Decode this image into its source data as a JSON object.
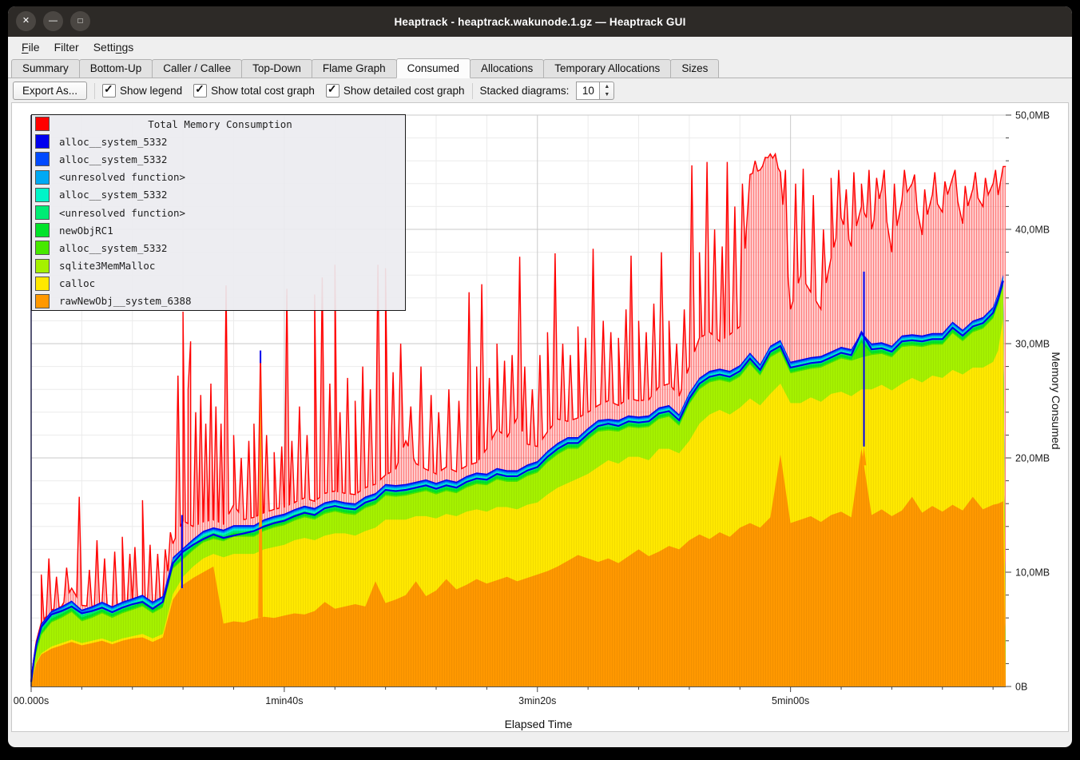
{
  "window": {
    "title": "Heaptrack - heaptrack.wakunode.1.gz — Heaptrack GUI",
    "controls": [
      {
        "name": "close",
        "glyph": "✕"
      },
      {
        "name": "minimize",
        "glyph": "—"
      },
      {
        "name": "maximize",
        "glyph": "□"
      }
    ]
  },
  "menubar": {
    "items": [
      {
        "label": "File",
        "underline_index": 0
      },
      {
        "label": "Filter",
        "underline_index": -1
      },
      {
        "label": "Settings",
        "underline_index": 5
      }
    ]
  },
  "tabs": {
    "active": "Consumed",
    "items": [
      "Summary",
      "Bottom-Up",
      "Caller / Callee",
      "Top-Down",
      "Flame Graph",
      "Consumed",
      "Allocations",
      "Temporary Allocations",
      "Sizes"
    ]
  },
  "toolbar": {
    "export_label": "Export As...",
    "checkboxes": [
      {
        "label": "Show legend",
        "checked": true
      },
      {
        "label": "Show total cost graph",
        "checked": true
      },
      {
        "label": "Show detailed cost graph",
        "checked": true
      }
    ],
    "stacked_label": "Stacked diagrams:",
    "stacked_value": "10",
    "check_glyph": "✓",
    "spin_up_glyph": "▲",
    "spin_down_glyph": "▼"
  },
  "legend": {
    "entries": [
      {
        "label": "Total Memory Consumption",
        "color": "#ff0000",
        "is_title": true
      },
      {
        "label": "alloc__system_5332",
        "color": "#0000ef",
        "is_title": false
      },
      {
        "label": "alloc__system_5332",
        "color": "#0049ff",
        "is_title": false
      },
      {
        "label": "<unresolved function>",
        "color": "#00a9f4",
        "is_title": false
      },
      {
        "label": "alloc__system_5332",
        "color": "#00f4c8",
        "is_title": false
      },
      {
        "label": "<unresolved function>",
        "color": "#00ec75",
        "is_title": false
      },
      {
        "label": "newObjRC1",
        "color": "#00e32b",
        "is_title": false
      },
      {
        "label": "alloc__system_5332",
        "color": "#47e900",
        "is_title": false
      },
      {
        "label": "sqlite3MemMalloc",
        "color": "#a5f100",
        "is_title": false
      },
      {
        "label": "calloc",
        "color": "#ffe800",
        "is_title": false
      },
      {
        "label": "rawNewObj__system_6388",
        "color": "#ff9800",
        "is_title": false
      }
    ]
  },
  "chart_data": {
    "type": "area",
    "stacked": true,
    "xlabel": "Elapsed Time",
    "ylabel": "Memory Consumed",
    "x_unit": "seconds",
    "xlim_s": [
      0,
      385
    ],
    "ylim_mb": [
      0,
      50
    ],
    "grid": {
      "h_minor_mb": 2,
      "h_major_mb": 10,
      "v_minor_s": 20,
      "v_major_s": 100,
      "minor_color": "#ebebeb",
      "major_color": "#c9c9c9"
    },
    "x_ticks": [
      {
        "label": "00.000s",
        "t": 0
      },
      {
        "label": "1min40s",
        "t": 100
      },
      {
        "label": "3min20s",
        "t": 200
      },
      {
        "label": "5min00s",
        "t": 300
      }
    ],
    "y_ticks": [
      {
        "label": "0B",
        "mb": 0
      },
      {
        "label": "10,0MB",
        "mb": 10
      },
      {
        "label": "20,0MB",
        "mb": 20
      },
      {
        "label": "30,0MB",
        "mb": 30
      },
      {
        "label": "40,0MB",
        "mb": 40
      },
      {
        "label": "50,0MB",
        "mb": 50
      }
    ],
    "t": [
      0,
      1,
      2,
      4,
      8,
      12,
      16,
      20,
      24,
      28,
      32,
      36,
      40,
      44,
      48,
      52,
      56,
      60,
      64,
      68,
      72,
      76,
      80,
      84,
      88,
      92,
      96,
      100,
      104,
      108,
      112,
      116,
      120,
      124,
      128,
      132,
      136,
      140,
      144,
      148,
      152,
      156,
      160,
      164,
      168,
      172,
      176,
      180,
      184,
      188,
      192,
      196,
      200,
      204,
      208,
      212,
      216,
      220,
      224,
      228,
      232,
      236,
      240,
      244,
      248,
      252,
      256,
      260,
      264,
      268,
      272,
      276,
      280,
      284,
      288,
      292,
      296,
      300,
      304,
      308,
      312,
      316,
      320,
      324,
      328,
      332,
      336,
      340,
      344,
      348,
      352,
      356,
      360,
      364,
      368,
      372,
      376,
      380,
      382,
      384
    ],
    "series_bottom_to_top": [
      {
        "name": "rawNewObj__system_6388",
        "color": "#ff9800",
        "values_mb": [
          0,
          1.2,
          2.0,
          2.8,
          3.3,
          3.6,
          3.9,
          3.6,
          3.8,
          4.0,
          3.7,
          4.0,
          4.2,
          4.3,
          3.9,
          4.3,
          7.6,
          8.9,
          9.5,
          10.0,
          10.5,
          5.5,
          5.7,
          5.6,
          5.9,
          6.1,
          6.0,
          6.2,
          6.4,
          6.3,
          6.6,
          7.4,
          6.8,
          7.0,
          7.2,
          7.0,
          9.2,
          7.3,
          7.6,
          8.0,
          9.2,
          7.9,
          8.4,
          9.4,
          8.5,
          8.9,
          9.4,
          9.0,
          9.3,
          9.6,
          9.2,
          9.5,
          9.8,
          10.1,
          10.5,
          11.0,
          11.5,
          11.2,
          10.9,
          11.2,
          10.8,
          11.4,
          12.0,
          11.4,
          11.8,
          12.3,
          12.0,
          12.8,
          13.3,
          12.9,
          13.5,
          13.1,
          13.9,
          14.3,
          13.9,
          14.8,
          20.3,
          14.3,
          14.6,
          14.9,
          14.4,
          15.0,
          15.3,
          14.8,
          20.8,
          15.0,
          15.5,
          14.9,
          15.4,
          16.6,
          15.2,
          15.8,
          15.3,
          15.9,
          15.4,
          16.6,
          15.5,
          15.9,
          16.0,
          16.2
        ]
      },
      {
        "name": "calloc",
        "color": "#ffe800",
        "values_mb": [
          0,
          0.1,
          0.1,
          0.1,
          0.2,
          0.2,
          0.2,
          0.2,
          0.2,
          0.2,
          0.2,
          0.2,
          0.2,
          0.3,
          0.3,
          0.3,
          0.5,
          0.7,
          1.0,
          1.2,
          1.1,
          5.8,
          5.9,
          6.0,
          5.7,
          5.9,
          6.2,
          6.2,
          6.4,
          6.7,
          6.2,
          5.8,
          6.6,
          6.4,
          6.0,
          6.6,
          4.7,
          7.3,
          7.0,
          6.6,
          5.7,
          7.0,
          6.3,
          5.7,
          6.4,
          6.4,
          6.1,
          6.3,
          6.4,
          6.1,
          6.3,
          6.4,
          6.3,
          6.7,
          6.9,
          6.8,
          6.7,
          7.4,
          8.3,
          8.6,
          8.7,
          8.7,
          8.1,
          8.4,
          9.0,
          8.5,
          8.4,
          8.7,
          9.7,
          10.9,
          10.7,
          10.7,
          10.5,
          10.9,
          10.7,
          10.8,
          6.2,
          10.5,
          10.2,
          10.4,
          10.5,
          10.6,
          10.5,
          10.6,
          5.2,
          11.0,
          10.9,
          11.0,
          11.1,
          10.4,
          11.4,
          11.4,
          11.7,
          11.8,
          11.9,
          11.3,
          12.4,
          12.5,
          13.4,
          16.0
        ]
      },
      {
        "name": "sqlite3MemMalloc",
        "color": "#a5f100",
        "values_mb": [
          0,
          0.3,
          0.8,
          1.6,
          2.1,
          2.2,
          2.4,
          1.9,
          2.0,
          2.2,
          2.1,
          2.2,
          2.3,
          2.4,
          2.2,
          2.3,
          2.2,
          1.5,
          1.4,
          1.4,
          1.3,
          1.4,
          1.5,
          1.5,
          1.5,
          1.6,
          1.7,
          1.7,
          1.7,
          1.8,
          1.8,
          1.9,
          1.9,
          1.7,
          1.8,
          2.0,
          2.0,
          2.1,
          2.0,
          2.1,
          2.0,
          2.2,
          2.1,
          2.0,
          2.0,
          2.1,
          2.2,
          2.3,
          2.4,
          2.2,
          2.4,
          2.5,
          2.6,
          2.8,
          2.9,
          3.0,
          2.6,
          3.0,
          3.1,
          2.6,
          2.8,
          2.6,
          2.5,
          2.9,
          2.6,
          2.8,
          2.4,
          3.2,
          3.0,
          2.8,
          2.6,
          2.8,
          2.7,
          3.0,
          2.6,
          3.2,
          2.8,
          2.6,
          2.8,
          2.5,
          3.0,
          2.7,
          2.9,
          3.1,
          2.8,
          3.0,
          2.7,
          2.9,
          3.2,
          2.8,
          3.1,
          2.7,
          2.9,
          3.2,
          2.9,
          3.1,
          3.4,
          3.8,
          4.0,
          2.8
        ]
      },
      {
        "name": "alloc__system_5332",
        "color": "#47e900",
        "values_mb": "derived_remainder"
      },
      {
        "name": "newObjRC1",
        "color": "#00e32b",
        "approx_mb": 0.22
      },
      {
        "name": "<unresolved function>",
        "color": "#00ec75",
        "approx_mb": 0.2
      },
      {
        "name": "alloc__system_5332",
        "color": "#00f4c8",
        "approx_mb": 0.16
      },
      {
        "name": "<unresolved function>",
        "color": "#00a9f4",
        "approx_mb": 0.12
      },
      {
        "name": "alloc__system_5332",
        "color": "#0049ff",
        "approx_mb": 0.1
      },
      {
        "name": "alloc__system_5332",
        "color": "#0000ef",
        "approx_mb": 0.1
      }
    ],
    "stacked_total_mb": [
      0.4,
      2.2,
      3.6,
      5.2,
      6.3,
      6.6,
      7.0,
      6.4,
      6.6,
      6.9,
      6.5,
      6.9,
      7.2,
      7.4,
      6.8,
      7.4,
      10.8,
      11.8,
      12.4,
      12.9,
      13.3,
      13.0,
      13.2,
      13.4,
      13.6,
      14.0,
      14.3,
      14.5,
      14.9,
      15.2,
      15.0,
      15.6,
      15.8,
      15.6,
      15.5,
      16.1,
      16.4,
      17.2,
      17.1,
      17.2,
      17.4,
      17.6,
      17.3,
      17.6,
      17.4,
      17.9,
      18.2,
      18.1,
      18.6,
      18.4,
      18.4,
      18.9,
      19.2,
      20.1,
      20.8,
      21.3,
      21.3,
      22.1,
      22.8,
      23.0,
      22.8,
      23.2,
      23.1,
      23.2,
      23.9,
      24.1,
      23.3,
      25.2,
      26.5,
      27.1,
      27.3,
      27.1,
      27.6,
      28.7,
      27.7,
      29.3,
      29.8,
      27.9,
      28.1,
      28.3,
      28.4,
      28.8,
      29.2,
      29.0,
      31.0,
      29.5,
      29.6,
      29.3,
      30.2,
      30.3,
      30.2,
      30.4,
      30.4,
      31.4,
      30.7,
      31.5,
      31.8,
      32.7,
      33.9,
      35.5
    ],
    "total": {
      "name": "Total Memory Consumption",
      "color": "#ff0000",
      "baseline_mb": [
        0.5,
        2.4,
        3.9,
        5.6,
        6.7,
        7.0,
        8.6,
        7.1,
        7.0,
        7.3,
        6.9,
        7.3,
        7.6,
        7.8,
        7.2,
        7.8,
        12.5,
        14.5,
        14.0,
        14.4,
        14.6,
        14.2,
        15.9,
        14.6,
        14.8,
        15.2,
        15.5,
        15.7,
        16.1,
        16.5,
        16.2,
        16.9,
        17.1,
        16.9,
        16.8,
        17.4,
        17.7,
        18.5,
        19.0,
        21.5,
        19.5,
        19.0,
        18.6,
        19.2,
        18.8,
        19.3,
        19.6,
        20.8,
        22.5,
        21.8,
        23.5,
        21.2,
        21.0,
        22.3,
        23.4,
        23.2,
        23.5,
        24.0,
        24.6,
        25.0,
        24.6,
        25.2,
        25.0,
        25.1,
        26.2,
        26.5,
        25.4,
        28.0,
        30.5,
        31.0,
        30.2,
        30.8,
        31.5,
        44.8,
        45.2,
        46.6,
        45.0,
        33.0,
        36.0,
        34.5,
        33.0,
        37.5,
        41.0,
        38.5,
        42.0,
        40.0,
        43.5,
        38.0,
        42.5,
        44.0,
        39.5,
        43.0,
        41.5,
        44.5,
        40.5,
        43.5,
        42.0,
        44.0,
        43.0,
        45.5
      ],
      "spikes": [
        [
          4,
          9.8
        ],
        [
          7,
          11.2
        ],
        [
          10,
          9.6
        ],
        [
          14,
          10.4
        ],
        [
          19,
          16.6
        ],
        [
          23,
          10.2
        ],
        [
          26,
          12.8
        ],
        [
          29,
          11.2
        ],
        [
          33,
          11.8
        ],
        [
          36,
          13.1
        ],
        [
          39,
          11.6
        ],
        [
          41,
          12.2
        ],
        [
          44,
          16.3
        ],
        [
          47,
          12.4
        ],
        [
          50,
          11.6
        ],
        [
          53,
          12.0
        ],
        [
          55,
          13.5
        ],
        [
          58,
          27.2
        ],
        [
          60,
          32.8
        ],
        [
          62,
          26.0
        ],
        [
          63,
          30.2
        ],
        [
          65,
          24.0
        ],
        [
          67,
          25.5
        ],
        [
          69,
          23.0
        ],
        [
          71,
          26.5
        ],
        [
          73,
          24.5
        ],
        [
          75,
          23.0
        ],
        [
          77,
          35.1
        ],
        [
          80,
          22.0
        ],
        [
          83,
          20.0
        ],
        [
          86,
          21.5
        ],
        [
          88,
          23.0
        ],
        [
          90.6,
          29.3
        ],
        [
          93,
          22.0
        ],
        [
          96,
          20.5
        ],
        [
          99,
          21.0
        ],
        [
          101,
          34.8
        ],
        [
          103,
          21.5
        ],
        [
          106,
          24.5
        ],
        [
          109,
          22.0
        ],
        [
          112,
          34.3
        ],
        [
          115,
          35.8
        ],
        [
          118,
          26.5
        ],
        [
          120,
          36.9
        ],
        [
          122,
          24.0
        ],
        [
          125,
          27.0
        ],
        [
          128,
          25.0
        ],
        [
          131,
          28.0
        ],
        [
          134,
          26.0
        ],
        [
          137,
          36.9
        ],
        [
          140,
          36.6
        ],
        [
          143,
          27.5
        ],
        [
          146,
          30.0
        ],
        [
          150,
          24.5
        ],
        [
          154,
          28.0
        ],
        [
          158,
          25.5
        ],
        [
          161,
          24.0
        ],
        [
          165,
          26.0
        ],
        [
          169,
          25.0
        ],
        [
          173,
          34.5
        ],
        [
          176,
          28.0
        ],
        [
          178,
          35.2
        ],
        [
          181,
          27.0
        ],
        [
          184,
          30.0
        ],
        [
          187,
          28.5
        ],
        [
          190,
          29.0
        ],
        [
          193,
          37.6
        ],
        [
          195,
          28.0
        ],
        [
          198,
          26.0
        ],
        [
          201,
          29.0
        ],
        [
          204,
          31.0
        ],
        [
          207,
          37.9
        ],
        [
          210,
          30.0
        ],
        [
          213,
          29.0
        ],
        [
          216,
          31.5
        ],
        [
          219,
          30.5
        ],
        [
          222,
          38.3
        ],
        [
          226,
          32.0
        ],
        [
          229,
          31.0
        ],
        [
          232,
          30.5
        ],
        [
          235,
          33.0
        ],
        [
          237,
          37.7
        ],
        [
          240,
          32.0
        ],
        [
          243,
          31.0
        ],
        [
          246,
          33.5
        ],
        [
          249,
          38.0
        ],
        [
          252,
          32.0
        ],
        [
          255,
          30.0
        ],
        [
          258,
          33.0
        ],
        [
          261,
          45.6
        ],
        [
          264,
          38.0
        ],
        [
          267,
          45.9
        ],
        [
          270,
          40.0
        ],
        [
          273,
          38.5
        ],
        [
          275,
          45.9
        ],
        [
          278,
          42.0
        ],
        [
          281,
          44.0
        ],
        [
          286,
          46.0
        ],
        [
          290,
          46.3
        ],
        [
          294,
          46.6
        ],
        [
          298,
          45.2
        ],
        [
          302,
          44.0
        ],
        [
          305,
          45.3
        ],
        [
          309,
          43.0
        ],
        [
          313,
          40.0
        ],
        [
          316,
          44.5
        ],
        [
          319,
          45.2
        ],
        [
          322,
          43.5
        ],
        [
          325,
          45.0
        ],
        [
          328,
          44.0
        ],
        [
          331,
          45.2
        ],
        [
          334,
          44.5
        ],
        [
          337,
          45.2
        ],
        [
          341,
          44.0
        ],
        [
          345,
          45.2
        ],
        [
          349,
          44.8
        ],
        [
          353,
          43.5
        ],
        [
          357,
          45.0
        ],
        [
          361,
          44.2
        ],
        [
          365,
          45.2
        ],
        [
          369,
          43.8
        ],
        [
          373,
          45.0
        ],
        [
          377,
          44.5
        ],
        [
          381,
          45.2
        ],
        [
          384,
          45.5
        ]
      ]
    },
    "transient_spikes": [
      {
        "t": 59.6,
        "orange_peak_mb": 8.6,
        "stack_peak_mb": 15.0
      },
      {
        "t": 90.6,
        "orange_peak_mb": 28.3,
        "stack_peak_mb": 29.4
      },
      {
        "t": 329,
        "orange_peak_mb": 21.0,
        "stack_peak_mb": 36.3
      }
    ]
  }
}
